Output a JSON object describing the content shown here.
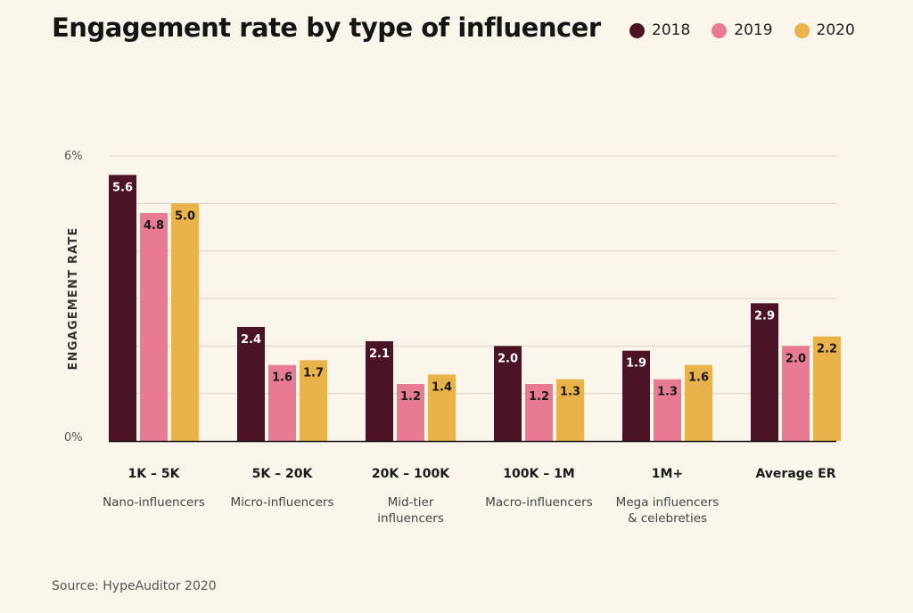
{
  "chart_data": {
    "type": "bar",
    "title": "Engagement rate by type of influencer",
    "ylabel": "ENGAGEMENT RATE",
    "xlabel": "",
    "ylim": [
      0,
      6
    ],
    "ytick_labels": [
      "0%",
      "6%"
    ],
    "grid": true,
    "legend_position": "top-right",
    "categories": [
      "1K – 5K",
      "5K – 20K",
      "20K – 100K",
      "100K – 1M",
      "1M+",
      "Average ER"
    ],
    "category_subtitles": [
      [
        "Nano-influencers"
      ],
      [
        "Micro-influencers"
      ],
      [
        "Mid-tier",
        "influencers"
      ],
      [
        "Macro-influencers"
      ],
      [
        "Mega influencers",
        "& celebreties"
      ],
      []
    ],
    "series": [
      {
        "name": "2018",
        "color": "#4a1424",
        "label_color": "#ffffff",
        "values": [
          5.6,
          2.4,
          2.1,
          2.0,
          1.9,
          2.9
        ],
        "labels": [
          "5.6",
          "2.4",
          "2.1",
          "2.0",
          "1.9",
          "2.9"
        ]
      },
      {
        "name": "2019",
        "color": "#e87a94",
        "label_color": "#1a1a1a",
        "values": [
          4.8,
          1.6,
          1.2,
          1.2,
          1.3,
          2.0
        ],
        "labels": [
          "4.8",
          "1.6",
          "1.2",
          "1.2",
          "1.3",
          "2.0"
        ]
      },
      {
        "name": "2020",
        "color": "#eab24a",
        "label_color": "#1a1a1a",
        "values": [
          5.0,
          1.7,
          1.4,
          1.3,
          1.6,
          2.2
        ],
        "labels": [
          "5.0",
          "1.7",
          "1.4",
          "1.3",
          "1.6",
          "2.2"
        ]
      }
    ],
    "source": "Source: HypeAuditor 2020"
  }
}
